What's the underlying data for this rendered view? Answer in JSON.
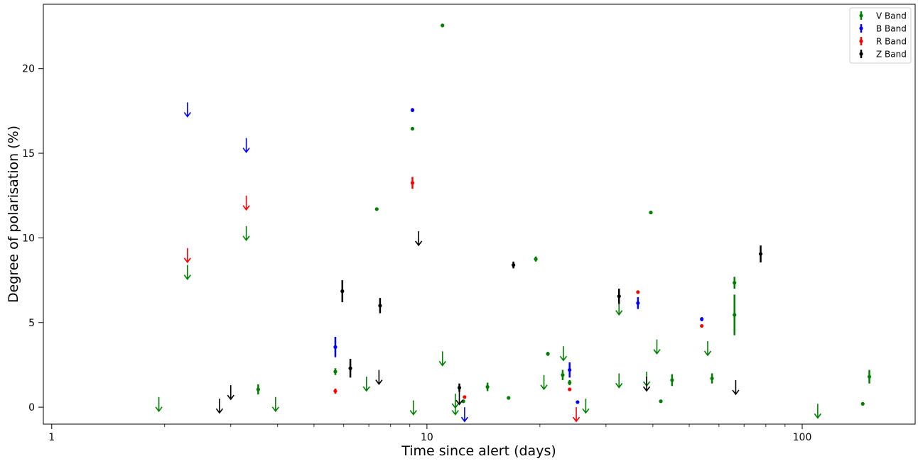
{
  "chart_data": {
    "type": "scatter",
    "title": "",
    "xlabel": "Time since alert (days)",
    "ylabel": "Degree of polarisation (%)",
    "x_scale": "log",
    "xlim": [
      0.95,
      200
    ],
    "ylim": [
      -1.0,
      23.8
    ],
    "x_ticks": [
      {
        "value": 1,
        "label": "1"
      },
      {
        "value": 10,
        "label": "10"
      },
      {
        "value": 100,
        "label": "100"
      }
    ],
    "y_ticks": [
      {
        "value": 0,
        "label": "0"
      },
      {
        "value": 5,
        "label": "5"
      },
      {
        "value": 10,
        "label": "10"
      },
      {
        "value": 15,
        "label": "15"
      },
      {
        "value": 20,
        "label": "20"
      }
    ],
    "grid": false,
    "legend_position": "top-right",
    "series": [
      {
        "name": "V Band",
        "color": "#008000",
        "points": [
          {
            "x": 5.7,
            "y": 2.1,
            "err": 0.2
          },
          {
            "x": 3.55,
            "y": 1.05,
            "err": 0.3
          },
          {
            "x": 7.35,
            "y": 11.7,
            "err": 0.05
          },
          {
            "x": 9.15,
            "y": 16.45,
            "err": 0.1
          },
          {
            "x": 11.0,
            "y": 22.55,
            "err": 0.1
          },
          {
            "x": 12.5,
            "y": 0.35,
            "err": 0.1
          },
          {
            "x": 14.5,
            "y": 1.2,
            "err": 0.25
          },
          {
            "x": 16.5,
            "y": 0.55,
            "err": 0.05
          },
          {
            "x": 19.5,
            "y": 8.75,
            "err": 0.15
          },
          {
            "x": 21.0,
            "y": 3.15,
            "err": 0.12
          },
          {
            "x": 23.0,
            "y": 1.9,
            "err": 0.3
          },
          {
            "x": 24.0,
            "y": 1.45,
            "err": 0.15
          },
          {
            "x": 39.5,
            "y": 11.5,
            "err": 0.05
          },
          {
            "x": 42.0,
            "y": 0.35,
            "err": 0.08
          },
          {
            "x": 45.0,
            "y": 1.6,
            "err": 0.35
          },
          {
            "x": 57.5,
            "y": 1.7,
            "err": 0.3
          },
          {
            "x": 66.0,
            "y": 7.35,
            "err": 0.35
          },
          {
            "x": 66.0,
            "y": 5.45,
            "err": 1.2
          },
          {
            "x": 145.0,
            "y": 0.2,
            "err": 0.05
          },
          {
            "x": 151.0,
            "y": 1.8,
            "err": 0.4
          }
        ],
        "upper_limits": [
          {
            "x": 1.93,
            "y": 0.6
          },
          {
            "x": 2.3,
            "y": 8.4
          },
          {
            "x": 3.3,
            "y": 10.7
          },
          {
            "x": 3.95,
            "y": 0.6
          },
          {
            "x": 6.9,
            "y": 1.8
          },
          {
            "x": 9.2,
            "y": 0.4
          },
          {
            "x": 11.0,
            "y": 3.3
          },
          {
            "x": 11.9,
            "y": 0.8
          },
          {
            "x": 11.9,
            "y": 0.4
          },
          {
            "x": 20.5,
            "y": 1.9
          },
          {
            "x": 23.1,
            "y": 3.6
          },
          {
            "x": 26.5,
            "y": 0.5
          },
          {
            "x": 32.5,
            "y": 2.0
          },
          {
            "x": 32.5,
            "y": 6.3
          },
          {
            "x": 38.5,
            "y": 2.1
          },
          {
            "x": 41.0,
            "y": 4.0
          },
          {
            "x": 56.0,
            "y": 3.9
          },
          {
            "x": 110.0,
            "y": 0.2
          }
        ]
      },
      {
        "name": "B Band",
        "color": "#0000ff",
        "points": [
          {
            "x": 5.7,
            "y": 3.55,
            "err": 0.6
          },
          {
            "x": 9.15,
            "y": 17.55,
            "err": 0.12
          },
          {
            "x": 24.0,
            "y": 2.2,
            "err": 0.45
          },
          {
            "x": 25.2,
            "y": 0.3,
            "err": 0.05
          },
          {
            "x": 36.5,
            "y": 6.15,
            "err": 0.35
          },
          {
            "x": 54.0,
            "y": 5.2,
            "err": 0.12
          }
        ],
        "upper_limits": [
          {
            "x": 2.3,
            "y": 18.0
          },
          {
            "x": 3.3,
            "y": 15.9
          },
          {
            "x": 12.6,
            "y": 0.0
          }
        ]
      },
      {
        "name": "R Band",
        "color": "#ff0000",
        "points": [
          {
            "x": 5.7,
            "y": 0.95,
            "err": 0.15
          },
          {
            "x": 9.15,
            "y": 13.25,
            "err": 0.35
          },
          {
            "x": 12.6,
            "y": 0.6,
            "err": 0.05
          },
          {
            "x": 24.0,
            "y": 1.05,
            "err": 0.1
          },
          {
            "x": 36.5,
            "y": 6.8,
            "err": 0.1
          },
          {
            "x": 54.0,
            "y": 4.8,
            "err": 0.05
          }
        ],
        "upper_limits": [
          {
            "x": 2.3,
            "y": 9.4
          },
          {
            "x": 3.3,
            "y": 12.5
          },
          {
            "x": 25.0,
            "y": 0.0
          }
        ]
      },
      {
        "name": "Z Band",
        "color": "#000000",
        "points": [
          {
            "x": 5.95,
            "y": 6.85,
            "err": 0.65
          },
          {
            "x": 6.25,
            "y": 2.3,
            "err": 0.55
          },
          {
            "x": 7.5,
            "y": 6.0,
            "err": 0.45
          },
          {
            "x": 12.2,
            "y": 1.15,
            "err": 0.25
          },
          {
            "x": 17.0,
            "y": 8.4,
            "err": 0.2
          },
          {
            "x": 32.5,
            "y": 6.55,
            "err": 0.45
          },
          {
            "x": 77.5,
            "y": 9.05,
            "err": 0.5
          }
        ],
        "upper_limits": [
          {
            "x": 2.8,
            "y": 0.5
          },
          {
            "x": 3.0,
            "y": 1.3
          },
          {
            "x": 7.45,
            "y": 2.2
          },
          {
            "x": 9.5,
            "y": 10.4
          },
          {
            "x": 12.2,
            "y": 1.0
          },
          {
            "x": 38.5,
            "y": 1.8
          },
          {
            "x": 66.5,
            "y": 1.6
          }
        ]
      }
    ]
  }
}
